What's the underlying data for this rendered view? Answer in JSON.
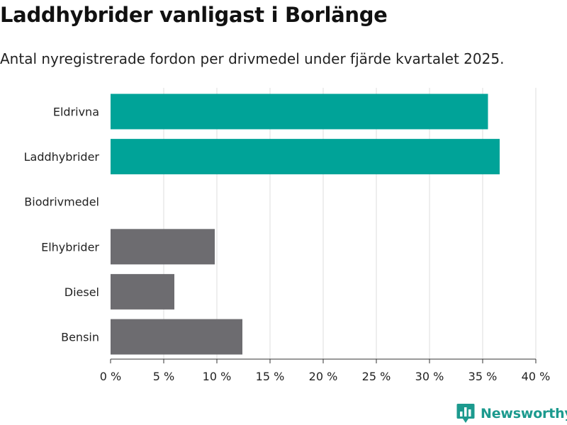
{
  "title": "Laddhybrider vanligast i Borlänge",
  "subtitle": "Antal nyregistrerade fordon per drivmedel under fjärde kvartalet 2025.",
  "colors": {
    "highlight": "#00a398",
    "default": "#6d6c70",
    "grid": "#dddddd"
  },
  "chart_data": {
    "type": "bar",
    "orientation": "horizontal",
    "categories": [
      "Eldrivna",
      "Laddhybrider",
      "Biodrivmedel",
      "Elhybrider",
      "Diesel",
      "Bensin"
    ],
    "values": [
      35.5,
      36.6,
      0,
      9.8,
      6.0,
      12.4
    ],
    "bar_colors": [
      "highlight",
      "highlight",
      "default",
      "default",
      "default",
      "default"
    ],
    "xlim": [
      0,
      40
    ],
    "x_ticks": [
      0,
      5,
      10,
      15,
      20,
      25,
      30,
      35,
      40
    ],
    "x_tick_labels": [
      "0 %",
      "5 %",
      "10 %",
      "15 %",
      "20 %",
      "25 %",
      "30 %",
      "35 %",
      "40 %"
    ],
    "grid": true
  },
  "brand": {
    "name": "Newsworthy",
    "icon": "bar-chart-logo-icon"
  }
}
